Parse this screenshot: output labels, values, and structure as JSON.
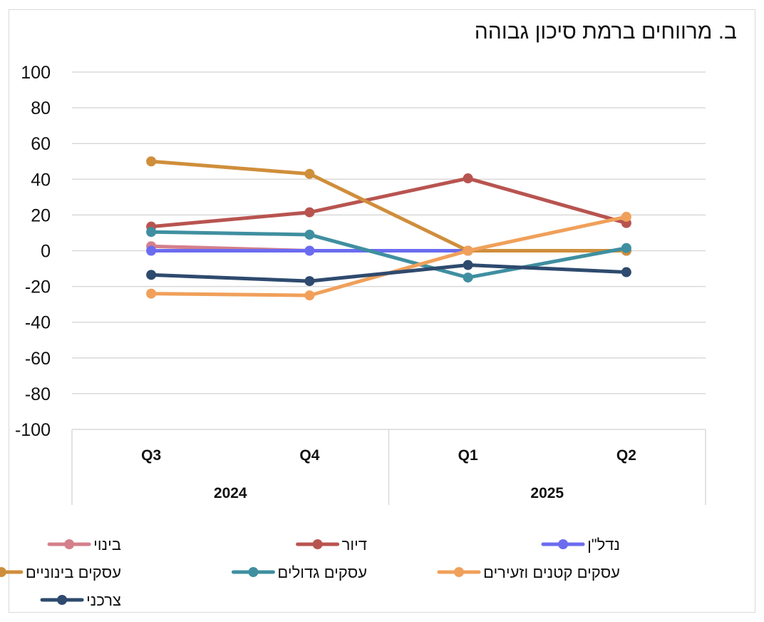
{
  "chart_data": {
    "type": "line",
    "title": "ב. מרווחים ברמת סיכון גבוהה",
    "xlabel": "",
    "ylabel": "",
    "ylim": [
      -100,
      100
    ],
    "yticks": [
      100,
      80,
      60,
      40,
      20,
      0,
      -20,
      -40,
      -60,
      -80,
      -100
    ],
    "categories": [
      "Q3",
      "Q4",
      "Q1",
      "Q2"
    ],
    "category_groups": [
      {
        "label": "2024",
        "span": 2
      },
      {
        "label": "2025",
        "span": 2
      }
    ],
    "grid": true,
    "legend_position": "bottom",
    "series": [
      {
        "name": "בינוי",
        "color": "#d47f8c",
        "values": [
          2.5,
          0,
          0,
          0
        ]
      },
      {
        "name": "דיור",
        "color": "#b85450",
        "values": [
          13.5,
          21.5,
          40.5,
          15.5
        ]
      },
      {
        "name": "נדל\"ן",
        "color": "#6b6bf0",
        "values": [
          0,
          0,
          0,
          0
        ]
      },
      {
        "name": "עסקים בינוניים",
        "color": "#cf8e3b",
        "values": [
          50,
          43,
          0,
          0
        ]
      },
      {
        "name": "עסקים גדולים",
        "color": "#3f8fa0",
        "values": [
          10.5,
          9,
          -15,
          1.5
        ]
      },
      {
        "name": "עסקים קטנים וזעירים",
        "color": "#f0a05a",
        "values": [
          -24,
          -25,
          0,
          19
        ]
      },
      {
        "name": "צרכני",
        "color": "#2e4a6e",
        "values": [
          -13.5,
          -17,
          -8,
          -12
        ]
      }
    ]
  }
}
